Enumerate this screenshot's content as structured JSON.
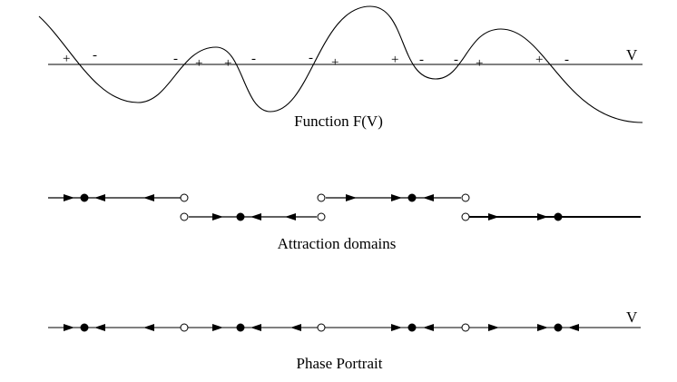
{
  "panels": {
    "function": {
      "caption": "Function F(V)",
      "axis_label": "V",
      "signs": [
        "+",
        "-",
        "-",
        "+",
        "+",
        "-",
        "-",
        "+",
        "+",
        "-",
        "-",
        "+",
        "+",
        "-"
      ]
    },
    "domains": {
      "caption": "Attraction domains"
    },
    "portrait": {
      "caption": "Phase Portrait",
      "axis_label": "V"
    }
  }
}
